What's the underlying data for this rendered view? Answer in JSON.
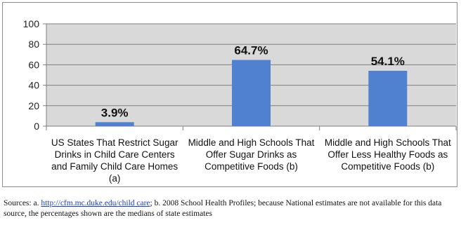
{
  "chart_data": {
    "type": "bar",
    "categories": [
      [
        "US States That Restrict Sugar",
        "Drinks in Child Care Centers",
        "and Family Child Care Homes",
        "(a)"
      ],
      [
        "Middle and High Schools That",
        "Offer Sugar Drinks as",
        "Competitive Foods (b)"
      ],
      [
        "Middle and High Schools That",
        "Offer Less Healthy Foods as",
        "Competitive Foods (b)"
      ]
    ],
    "values": [
      3.9,
      64.7,
      54.1
    ],
    "data_labels": [
      "3.9%",
      "64.7%",
      "54.1%"
    ],
    "ylim": [
      0,
      100
    ],
    "yticks": [
      0,
      20,
      40,
      60,
      80,
      100
    ],
    "grid": true,
    "plot_background": "#d9d9d9",
    "bar_color": "#4f81d0",
    "gridline_color": "#7f7f7f"
  },
  "sources": {
    "prefix": "Sources: a. ",
    "link": "http://cfm.mc.duke.edu/child care",
    "text": "; b. 2008 School Health Profiles; because National estimates are not available for this data source, the percentages shown are the medians of state estimates"
  }
}
